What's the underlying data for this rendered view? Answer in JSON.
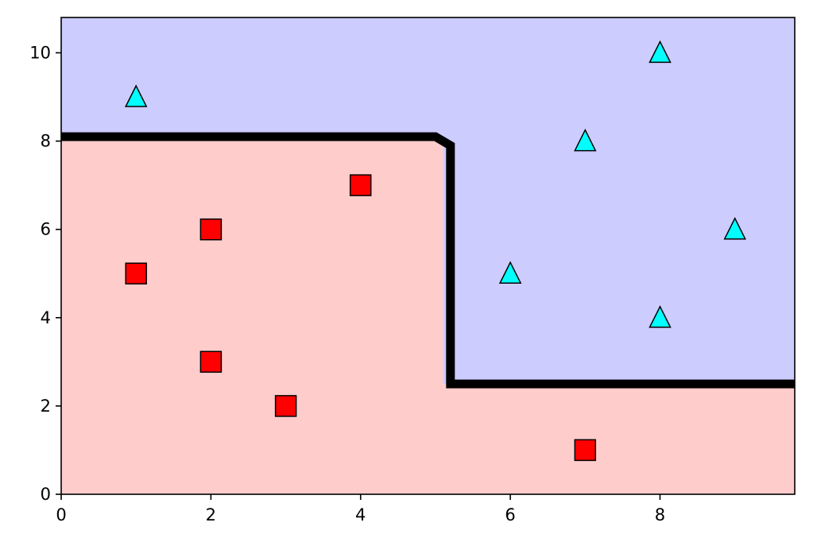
{
  "chart_data": {
    "type": "scatter",
    "title": "",
    "xlabel": "",
    "ylabel": "",
    "xlim": [
      0,
      9.8
    ],
    "ylim": [
      0,
      10.8
    ],
    "x_ticks": [
      {
        "value": 0,
        "label": "0"
      },
      {
        "value": 2,
        "label": "2"
      },
      {
        "value": 4,
        "label": "4"
      },
      {
        "value": 6,
        "label": "6"
      },
      {
        "value": 8,
        "label": "8"
      }
    ],
    "y_ticks": [
      {
        "value": 0,
        "label": "0"
      },
      {
        "value": 2,
        "label": "2"
      },
      {
        "value": 4,
        "label": "4"
      },
      {
        "value": 6,
        "label": "6"
      },
      {
        "value": 8,
        "label": "8"
      },
      {
        "value": 10,
        "label": "10"
      }
    ],
    "grid": false,
    "legend": "none",
    "regions": [
      {
        "class": "square-class",
        "color": "#ffcccc",
        "polygon": [
          [
            0,
            0
          ],
          [
            9.8,
            0
          ],
          [
            9.8,
            2.5
          ],
          [
            5.1,
            2.5
          ],
          [
            5.1,
            8.1
          ],
          [
            0,
            8.1
          ]
        ]
      },
      {
        "class": "triangle-class",
        "color": "#ccccff",
        "polygon": [
          [
            0,
            8.1
          ],
          [
            5.1,
            8.1
          ],
          [
            5.1,
            2.5
          ],
          [
            9.8,
            2.5
          ],
          [
            9.8,
            10.8
          ],
          [
            0,
            10.8
          ]
        ]
      }
    ],
    "decision_boundary": {
      "color": "#000000",
      "points": [
        [
          0,
          8.1
        ],
        [
          5.0,
          8.1
        ],
        [
          5.2,
          7.9
        ],
        [
          5.2,
          2.5
        ],
        [
          9.8,
          2.5
        ]
      ]
    },
    "series": [
      {
        "marker": "square",
        "color": "#ff0000",
        "points": [
          [
            1,
            5
          ],
          [
            2,
            6
          ],
          [
            2,
            3
          ],
          [
            3,
            2
          ],
          [
            4,
            7
          ],
          [
            7,
            1
          ]
        ]
      },
      {
        "marker": "triangle",
        "color": "#00ffff",
        "points": [
          [
            1,
            9
          ],
          [
            6,
            5
          ],
          [
            7,
            8
          ],
          [
            8,
            10
          ],
          [
            8,
            4
          ],
          [
            9,
            6
          ]
        ]
      }
    ]
  }
}
